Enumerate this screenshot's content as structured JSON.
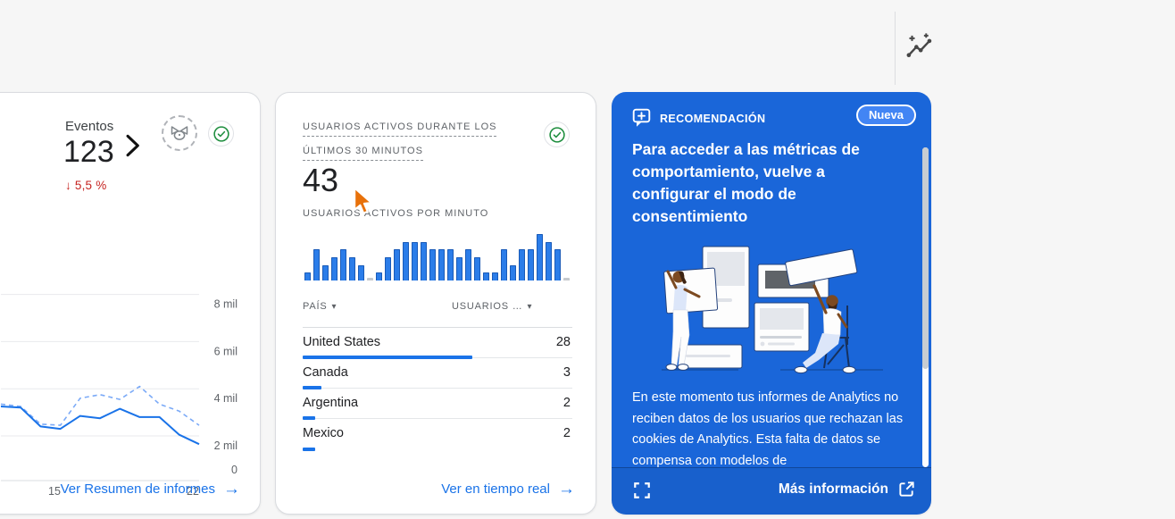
{
  "icons": {
    "arrow_right": "→",
    "sort_caret": "▾",
    "dropdown_caret": "▾"
  },
  "colors": {
    "page_background": "#f6f6f6",
    "accent_blue": "#1a73e8",
    "negative_red": "#c5221f",
    "green_check": "#1e8e3e",
    "recommendation_blue": "#1a66d9",
    "badge_blue": "#4285f4",
    "bar_blue": "#2b7de9",
    "dashed_line_blue": "#7baaf7"
  },
  "events_card": {
    "metric_label": "Eventos",
    "value": "123",
    "delta": "↓ 5,5 %",
    "footer_link": "Ver Resumen de informes",
    "chart_data": {
      "type": "line",
      "ylabel": "",
      "ylim": [
        0,
        8
      ],
      "unit": "mil",
      "y_ticks": [
        "8 mil",
        "6 mil",
        "4 mil",
        "2 mil",
        "0"
      ],
      "y_tick_values": [
        8,
        6,
        4,
        2,
        0
      ],
      "x_ticks": [
        {
          "label": "15",
          "x": 60
        },
        {
          "label": "22",
          "x": 215
        }
      ],
      "grid": true,
      "series": [
        {
          "name": "current",
          "style": "solid",
          "values": [
            3.25,
            3.2,
            2.4,
            2.3,
            2.85,
            2.75,
            3.15,
            2.8,
            2.8,
            2.05,
            1.65
          ]
        },
        {
          "name": "previous",
          "style": "dashed",
          "values": [
            3.35,
            3.25,
            2.5,
            2.45,
            3.6,
            3.75,
            3.55,
            4.1,
            3.35,
            3.05,
            2.45
          ]
        }
      ]
    }
  },
  "realtime_card": {
    "title_line1": "USUARIOS ACTIVOS DURANTE LOS",
    "title_line2": "ÚLTIMOS 30 MINUTOS",
    "value": "43",
    "subtitle": "USUARIOS ACTIVOS POR MINUTO",
    "chart_data": {
      "type": "bar",
      "title": "Usuarios activos por minuto",
      "values": [
        1,
        4,
        2,
        3,
        4,
        3,
        2,
        0,
        1,
        3,
        4,
        5,
        5,
        5,
        4,
        4,
        4,
        3,
        4,
        3,
        1,
        1,
        4,
        2,
        4,
        4,
        6,
        5,
        4,
        0
      ],
      "ylim": [
        0,
        6
      ]
    },
    "table": {
      "col1": "PAÍS",
      "col2": "USUARIOS …",
      "max_users": 28,
      "rows": [
        {
          "country": "United States",
          "users": 28
        },
        {
          "country": "Canada",
          "users": 3
        },
        {
          "country": "Argentina",
          "users": 2
        },
        {
          "country": "Mexico",
          "users": 2
        }
      ]
    },
    "footer_link": "Ver en tiempo real"
  },
  "recommendation_card": {
    "eyebrow": "RECOMENDACIÓN",
    "badge": "Nueva",
    "title": "Para acceder a las métricas de comportamiento, vuelve a configurar el modo de consentimiento",
    "body": "En este momento tus informes de Analytics no reciben datos de los usuarios que rechazan las cookies de Analytics. Esta falta de datos se compensa con modelos de",
    "footer_link": "Más información"
  }
}
